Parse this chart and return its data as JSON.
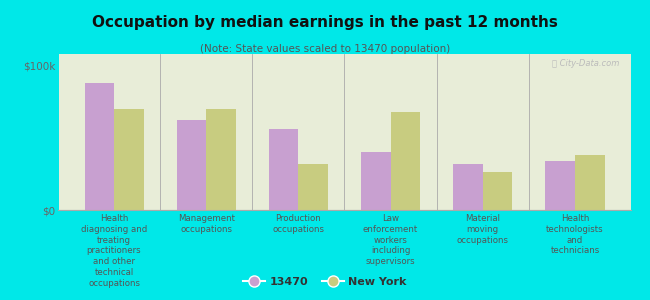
{
  "title": "Occupation by median earnings in the past 12 months",
  "subtitle": "(Note: State values scaled to 13470 population)",
  "background_color": "#00e8e8",
  "plot_bg_top": "#e8edd8",
  "plot_bg_bottom": "#d8e8c8",
  "categories": [
    "Health\ndiagnosing and\ntreating\npractitioners\nand other\ntechnical\noccupations",
    "Management\noccupations",
    "Production\noccupations",
    "Law\nenforcement\nworkers\nincluding\nsupervisors",
    "Material\nmoving\noccupations",
    "Health\ntechnologists\nand\ntechnicians"
  ],
  "values_13470": [
    88000,
    62000,
    56000,
    40000,
    32000,
    34000
  ],
  "values_ny": [
    70000,
    70000,
    32000,
    68000,
    26000,
    38000
  ],
  "color_13470": "#c8a0d0",
  "color_ny": "#c8cc80",
  "ylim": [
    0,
    108000
  ],
  "yticks": [
    0,
    100000
  ],
  "ytick_labels": [
    "$0",
    "$100k"
  ],
  "legend_labels": [
    "13470",
    "New York"
  ],
  "bar_width": 0.32,
  "watermark": "Ⓜ City-Data.com"
}
